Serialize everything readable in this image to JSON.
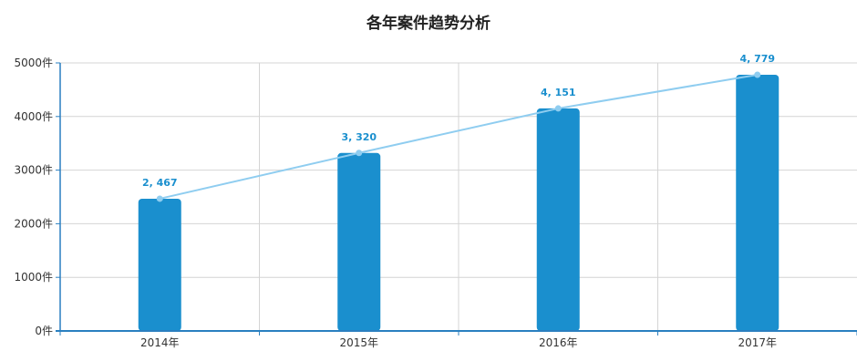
{
  "chart_data": {
    "type": "bar",
    "title": "各年案件趋势分析",
    "categories": [
      "2014年",
      "2015年",
      "2016年",
      "2017年"
    ],
    "series": [
      {
        "type": "bar",
        "values": [
          2467,
          3320,
          4151,
          4779
        ]
      },
      {
        "type": "line",
        "values": [
          2467,
          3320,
          4151,
          4779
        ]
      }
    ],
    "data_labels": [
      "2, 467",
      "3, 320",
      "4, 151",
      "4, 779"
    ],
    "y_ticks": [
      0,
      1000,
      2000,
      3000,
      4000,
      5000
    ],
    "y_tick_labels": [
      "0件",
      "1000件",
      "2000件",
      "3000件",
      "4000件",
      "5000件"
    ],
    "ylim": [
      0,
      5000
    ],
    "grid": true,
    "colors": {
      "bar": "#1a8fce",
      "line": "#8fcdf0",
      "label": "#1a8fce",
      "axis": "#2a7fc0",
      "grid": "#d4d4d4"
    }
  }
}
